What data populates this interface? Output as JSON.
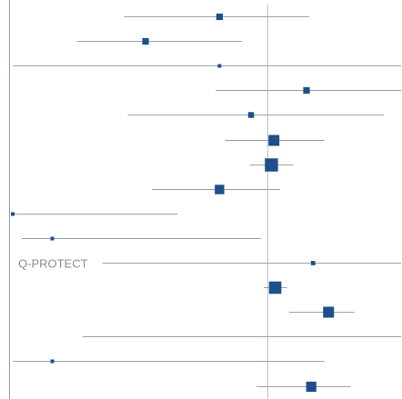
{
  "chart_data": {
    "type": "scatter",
    "title": "",
    "xlabel": "",
    "ylabel": "",
    "reference_line": 1.0,
    "xlim": [
      0.14,
      2.8
    ],
    "grid": false,
    "rows": [
      {
        "label": "",
        "estimate": 0.69,
        "lower": 0.33,
        "upper": 1.38,
        "weight": 0.9
      },
      {
        "label": "",
        "estimate": 0.39,
        "lower": 0.23,
        "upper": 0.82,
        "weight": 0.9
      },
      {
        "label": "",
        "estimate": 0.69,
        "lower": 0.14,
        "upper": 2.8,
        "weight": 0.5
      },
      {
        "label": "",
        "estimate": 1.35,
        "lower": 0.67,
        "upper": 2.8,
        "weight": 0.9
      },
      {
        "label": "",
        "estimate": 0.88,
        "lower": 0.34,
        "upper": 2.45,
        "weight": 0.8
      },
      {
        "label": "",
        "estimate": 1.05,
        "lower": 0.72,
        "upper": 1.55,
        "weight": 1.5
      },
      {
        "label": "",
        "estimate": 1.03,
        "lower": 0.87,
        "upper": 1.22,
        "weight": 1.8
      },
      {
        "label": "",
        "estimate": 0.69,
        "lower": 0.41,
        "upper": 1.1,
        "weight": 1.3
      },
      {
        "label": "",
        "estimate": 0.14,
        "lower": 0.14,
        "upper": 0.5,
        "weight": 0.5
      },
      {
        "label": "",
        "estimate": 0.19,
        "lower": 0.15,
        "upper": 0.95,
        "weight": 0.5
      },
      {
        "label": "Q-PROTECT",
        "estimate": 1.42,
        "lower": 0.28,
        "upper": 2.8,
        "weight": 0.6
      },
      {
        "label": "",
        "estimate": 1.06,
        "lower": 0.97,
        "upper": 1.16,
        "weight": 1.7
      },
      {
        "label": "",
        "estimate": 1.6,
        "lower": 1.18,
        "upper": 1.95,
        "weight": 1.5
      },
      {
        "label": "",
        "estimate": null,
        "lower": 0.24,
        "upper": 2.8,
        "weight": 0
      },
      {
        "label": "",
        "estimate": 0.19,
        "lower": 0.14,
        "upper": 1.55,
        "weight": 0.5
      },
      {
        "label": "",
        "estimate": 1.4,
        "lower": 0.92,
        "upper": 1.9,
        "weight": 1.4
      }
    ]
  }
}
